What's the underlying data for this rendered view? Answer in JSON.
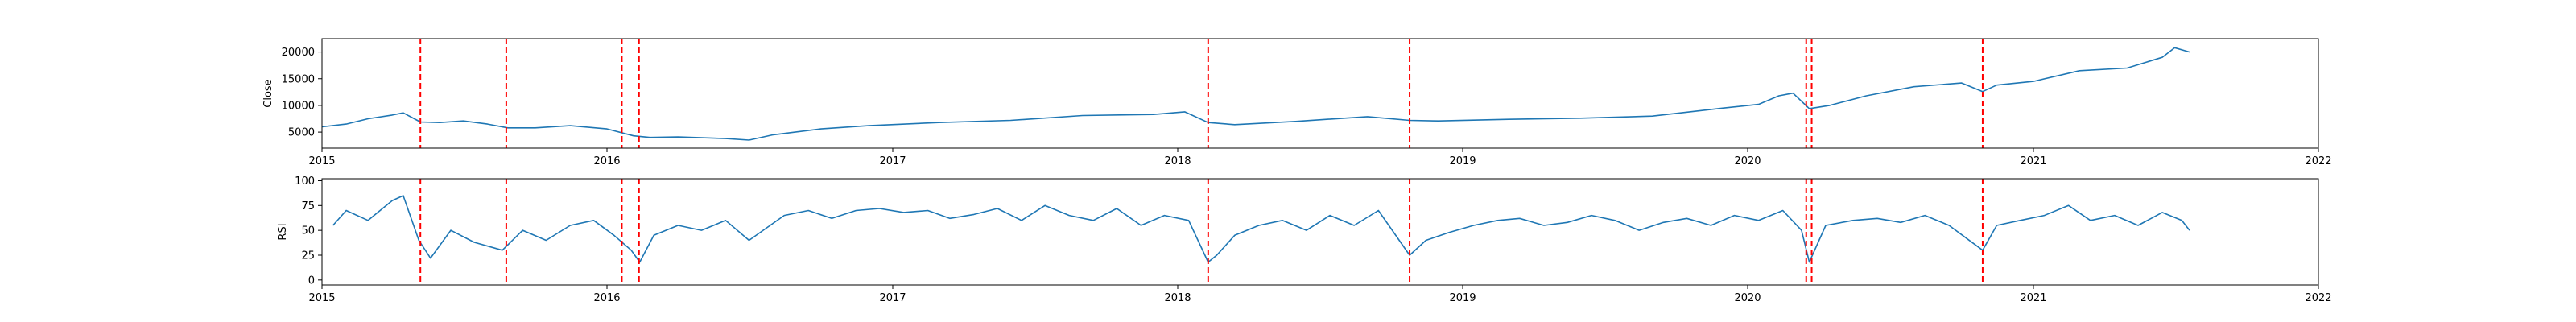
{
  "chart_data": [
    {
      "type": "line",
      "title": "",
      "xlabel": "",
      "ylabel": "Close",
      "xlim": [
        "2015-01-01",
        "2022-01-01"
      ],
      "ylim": [
        2000,
        22500
      ],
      "xticks": [
        "2015",
        "2016",
        "2017",
        "2018",
        "2019",
        "2020",
        "2021",
        "2022"
      ],
      "yticks": [
        5000,
        10000,
        15000,
        20000
      ],
      "ytick_labels": [
        "5000",
        "10000",
        "15000",
        "20000"
      ],
      "series": [
        {
          "color": "#1f77b4",
          "x": [
            "2015-01-01",
            "2015-02-01",
            "2015-03-01",
            "2015-04-01",
            "2015-04-15",
            "2015-05-07",
            "2015-06-01",
            "2015-07-01",
            "2015-08-01",
            "2015-08-27",
            "2015-10-01",
            "2015-11-15",
            "2016-01-01",
            "2016-02-04",
            "2016-02-25",
            "2016-04-01",
            "2016-06-01",
            "2016-07-01",
            "2016-08-01",
            "2016-10-01",
            "2016-12-01",
            "2017-03-01",
            "2017-06-01",
            "2017-09-01",
            "2017-12-01",
            "2018-01-10",
            "2018-02-09",
            "2018-03-15",
            "2018-06-01",
            "2018-09-01",
            "2018-10-25",
            "2018-12-01",
            "2019-03-01",
            "2019-06-01",
            "2019-09-01",
            "2019-12-01",
            "2020-01-15",
            "2020-02-10",
            "2020-02-28",
            "2020-03-20",
            "2020-04-15",
            "2020-06-01",
            "2020-08-01",
            "2020-10-01",
            "2020-10-28",
            "2020-11-15",
            "2021-01-01",
            "2021-03-01",
            "2021-05-01",
            "2021-06-15",
            "2021-07-01",
            "2021-07-20"
          ],
          "y": [
            6000,
            6500,
            7500,
            8200,
            8600,
            6900,
            6800,
            7100,
            6500,
            5800,
            5800,
            6200,
            5600,
            4300,
            4000,
            4100,
            3800,
            3500,
            4500,
            5600,
            6200,
            6800,
            7200,
            8100,
            8300,
            8800,
            6800,
            6400,
            7000,
            7900,
            7200,
            7100,
            7400,
            7600,
            8000,
            9500,
            10200,
            11800,
            12300,
            9400,
            10000,
            11800,
            13500,
            14200,
            12600,
            13800,
            14500,
            16500,
            17000,
            19000,
            20800,
            20000
          ]
        }
      ],
      "vlines": [
        "2015-05-07",
        "2015-08-25",
        "2016-01-20",
        "2016-02-11",
        "2018-02-09",
        "2018-10-25",
        "2020-03-16",
        "2020-03-23",
        "2020-10-28"
      ],
      "vline_color": "#ff0000",
      "grid": false
    },
    {
      "type": "line",
      "title": "",
      "xlabel": "",
      "ylabel": "RSI",
      "xlim": [
        "2015-01-01",
        "2022-01-01"
      ],
      "ylim": [
        -5,
        102
      ],
      "xticks": [
        "2015",
        "2016",
        "2017",
        "2018",
        "2019",
        "2020",
        "2021",
        "2022"
      ],
      "yticks": [
        0,
        25,
        50,
        75,
        100
      ],
      "ytick_labels": [
        "0",
        "25",
        "50",
        "75",
        "100"
      ],
      "series": [
        {
          "color": "#1f77b4",
          "x": [
            "2015-01-15",
            "2015-02-01",
            "2015-03-01",
            "2015-04-01",
            "2015-04-15",
            "2015-05-05",
            "2015-05-20",
            "2015-06-15",
            "2015-07-15",
            "2015-08-20",
            "2015-09-15",
            "2015-10-15",
            "2015-11-15",
            "2015-12-15",
            "2016-01-10",
            "2016-02-01",
            "2016-02-12",
            "2016-03-01",
            "2016-04-01",
            "2016-05-01",
            "2016-06-01",
            "2016-07-01",
            "2016-08-15",
            "2016-09-15",
            "2016-10-15",
            "2016-11-15",
            "2016-12-15",
            "2017-01-15",
            "2017-02-15",
            "2017-03-15",
            "2017-04-15",
            "2017-05-15",
            "2017-06-15",
            "2017-07-15",
            "2017-08-15",
            "2017-09-15",
            "2017-10-15",
            "2017-11-15",
            "2017-12-15",
            "2018-01-15",
            "2018-02-09",
            "2018-02-20",
            "2018-03-15",
            "2018-04-15",
            "2018-05-15",
            "2018-06-15",
            "2018-07-15",
            "2018-08-15",
            "2018-09-15",
            "2018-10-25",
            "2018-11-15",
            "2018-12-15",
            "2019-01-15",
            "2019-02-15",
            "2019-03-15",
            "2019-04-15",
            "2019-05-15",
            "2019-06-15",
            "2019-07-15",
            "2019-08-15",
            "2019-09-15",
            "2019-10-15",
            "2019-11-15",
            "2019-12-15",
            "2020-01-15",
            "2020-02-15",
            "2020-03-10",
            "2020-03-20",
            "2020-04-10",
            "2020-05-15",
            "2020-06-15",
            "2020-07-15",
            "2020-08-15",
            "2020-09-15",
            "2020-10-28",
            "2020-11-15",
            "2020-12-15",
            "2021-01-15",
            "2021-02-15",
            "2021-03-15",
            "2021-04-15",
            "2021-05-15",
            "2021-06-15",
            "2021-07-10",
            "2021-07-20"
          ],
          "y": [
            55,
            70,
            60,
            80,
            85,
            40,
            22,
            50,
            38,
            30,
            50,
            40,
            55,
            60,
            45,
            30,
            18,
            45,
            55,
            50,
            60,
            40,
            65,
            70,
            62,
            70,
            72,
            68,
            70,
            62,
            66,
            72,
            60,
            75,
            65,
            60,
            72,
            55,
            65,
            60,
            18,
            25,
            45,
            55,
            60,
            50,
            65,
            55,
            70,
            25,
            40,
            48,
            55,
            60,
            62,
            55,
            58,
            65,
            60,
            50,
            58,
            62,
            55,
            65,
            60,
            70,
            50,
            18,
            55,
            60,
            62,
            58,
            65,
            55,
            30,
            55,
            60,
            65,
            75,
            60,
            65,
            55,
            68,
            60,
            50
          ]
        }
      ],
      "vlines": [
        "2015-05-07",
        "2015-08-25",
        "2016-01-20",
        "2016-02-11",
        "2018-02-09",
        "2018-10-25",
        "2020-03-16",
        "2020-03-23",
        "2020-10-28"
      ],
      "vline_color": "#ff0000",
      "grid": false
    }
  ]
}
